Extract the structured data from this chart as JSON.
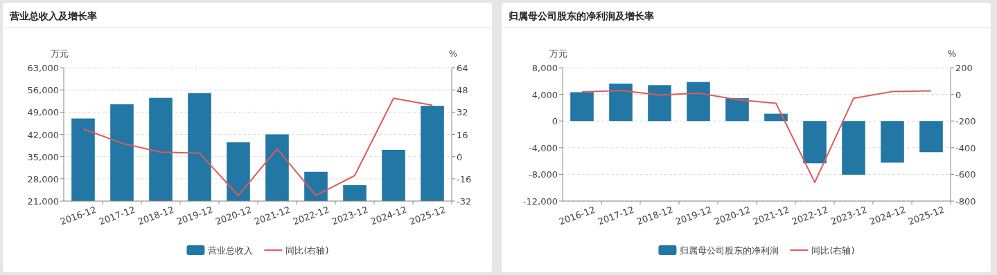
{
  "chart_data": [
    {
      "type": "bar",
      "title": "营业总收入及增长率",
      "ylabel": "万元",
      "y2label": "%",
      "categories": [
        "2016-12",
        "2017-12",
        "2018-12",
        "2019-12",
        "2020-12",
        "2021-12",
        "2022-12",
        "2023-12",
        "2024-12",
        "2025-12"
      ],
      "series": [
        {
          "name": "营业总收入",
          "color": "#2277a4",
          "values": [
            47000,
            51500,
            53500,
            55000,
            39500,
            42000,
            30200,
            26000,
            37100,
            51000
          ]
        },
        {
          "name": "同比(右轴)",
          "type": "line",
          "axis": "y2",
          "color": "#e05a5a",
          "values": [
            20,
            9.7,
            3.2,
            2.5,
            -28,
            5.6,
            -28,
            -13.6,
            42,
            37
          ]
        }
      ],
      "ylim": [
        21000,
        63000
      ],
      "yticks": [
        {
          "value": 21000,
          "label": "21,000"
        },
        {
          "value": 28000,
          "label": "28,000"
        },
        {
          "value": 35000,
          "label": "35,000"
        },
        {
          "value": 42000,
          "label": "42,000"
        },
        {
          "value": 49000,
          "label": "49,000"
        },
        {
          "value": 56000,
          "label": "56,000"
        },
        {
          "value": 63000,
          "label": "63,000"
        }
      ],
      "y2lim": [
        -32,
        64
      ],
      "y2ticks": [
        -32,
        -16,
        0,
        16,
        32,
        48,
        64
      ],
      "grid": "y",
      "legend": "bottom",
      "marker": "none"
    },
    {
      "type": "bar",
      "title": "归属母公司股东的净利润及增长率",
      "ylabel": "万元",
      "y2label": "%",
      "categories": [
        "2016-12",
        "2017-12",
        "2018-12",
        "2019-12",
        "2020-12",
        "2021-12",
        "2022-12",
        "2023-12",
        "2024-12",
        "2025-12"
      ],
      "series": [
        {
          "name": "归属母公司股东的净利润",
          "color": "#2277a4",
          "values": [
            4330,
            5620,
            5380,
            5860,
            3430,
            1100,
            -6330,
            -8050,
            -6240,
            -4670
          ]
        },
        {
          "name": "同比(右轴)",
          "type": "line",
          "axis": "y2",
          "color": "#e05a5a",
          "values": [
            19,
            29,
            -5,
            10,
            -40,
            -67,
            -660,
            -29,
            21,
            26
          ]
        }
      ],
      "ylim": [
        -12000,
        8000
      ],
      "yticks": [
        {
          "value": -12000,
          "label": "-12,000"
        },
        {
          "value": -8000,
          "label": "-8,000"
        },
        {
          "value": -4000,
          "label": "-4,000"
        },
        0,
        {
          "value": 4000,
          "label": "4,000"
        },
        {
          "value": 8000,
          "label": "8,000"
        }
      ],
      "y2lim": [
        -800,
        200
      ],
      "y2ticks": [
        -800,
        -600,
        -400,
        -200,
        0,
        200
      ],
      "grid": "y",
      "legend": "bottom",
      "marker": "none"
    }
  ]
}
